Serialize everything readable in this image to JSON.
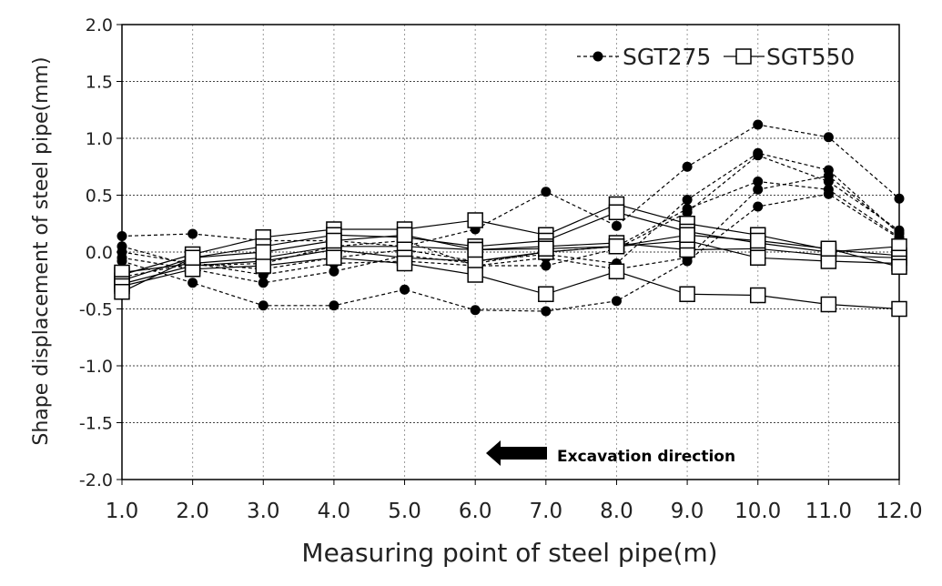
{
  "chart_data": {
    "type": "line",
    "xlabel": "Measuring point of steel pipe(m)",
    "ylabel": "Shape displacement of steel pipe(mm)",
    "xlim": [
      1,
      12
    ],
    "ylim": [
      -2.0,
      2.0
    ],
    "x_ticks": [
      "1.0",
      "2.0",
      "3.0",
      "4.0",
      "5.0",
      "6.0",
      "7.0",
      "8.0",
      "9.0",
      "10.0",
      "11.0",
      "12.0"
    ],
    "y_ticks": [
      "-2.0",
      "-1.5",
      "-1.0",
      "-0.5",
      "0.0",
      "0.5",
      "1.0",
      "1.5",
      "2.0"
    ],
    "grid": true,
    "legend": {
      "position": "top-right",
      "entries": [
        "SGT275",
        "SGT550"
      ]
    },
    "annotation": {
      "text": "Excavation direction",
      "arrow": "left",
      "x": 6.0,
      "y": -1.78
    },
    "x": [
      1,
      2,
      3,
      4,
      5,
      6,
      7,
      8,
      9,
      10,
      11,
      12
    ],
    "series": [
      {
        "name": "SGT275",
        "group": "SGT275",
        "style": "dashed-filled-circle",
        "values": [
          0.14,
          0.16,
          0.1,
          0.1,
          0.05,
          0.2,
          0.53,
          0.23,
          0.75,
          1.12,
          1.01,
          0.47
        ]
      },
      {
        "name": "SGT275",
        "group": "SGT275",
        "style": "dashed-filled-circle",
        "values": [
          0.05,
          -0.12,
          -0.1,
          0.05,
          0.1,
          -0.12,
          -0.12,
          0.03,
          0.35,
          0.85,
          0.62,
          0.19
        ]
      },
      {
        "name": "SGT275",
        "group": "SGT275",
        "style": "dashed-filled-circle",
        "values": [
          0.0,
          -0.1,
          -0.15,
          -0.05,
          0.02,
          -0.08,
          -0.02,
          -0.1,
          0.46,
          0.87,
          0.72,
          0.16
        ]
      },
      {
        "name": "SGT275",
        "group": "SGT275",
        "style": "dashed-filled-circle",
        "values": [
          -0.05,
          -0.15,
          -0.27,
          -0.17,
          -0.03,
          -0.1,
          0.0,
          0.05,
          0.38,
          0.62,
          0.55,
          0.13
        ]
      },
      {
        "name": "SGT275",
        "group": "SGT275",
        "style": "dashed-filled-circle",
        "values": [
          -0.08,
          -0.27,
          -0.47,
          -0.47,
          -0.33,
          -0.51,
          -0.52,
          -0.43,
          -0.08,
          0.4,
          0.51,
          0.12
        ]
      },
      {
        "name": "SGT275",
        "group": "SGT275",
        "style": "dashed-filled-circle",
        "values": [
          -0.22,
          -0.1,
          -0.2,
          -0.1,
          -0.08,
          -0.12,
          -0.05,
          -0.15,
          -0.05,
          0.55,
          0.67,
          0.17
        ]
      },
      {
        "name": "SGT550",
        "group": "SGT550",
        "style": "solid-open-square",
        "values": [
          -0.2,
          -0.02,
          0.13,
          0.2,
          0.2,
          0.28,
          0.15,
          0.42,
          0.25,
          0.15,
          0.02,
          -0.03
        ]
      },
      {
        "name": "SGT550",
        "group": "SGT550",
        "style": "solid-open-square",
        "values": [
          -0.25,
          -0.05,
          0.05,
          0.15,
          0.13,
          0.05,
          0.1,
          0.35,
          0.18,
          0.08,
          0.0,
          0.05
        ]
      },
      {
        "name": "SGT550",
        "group": "SGT550",
        "style": "solid-open-square",
        "values": [
          -0.18,
          -0.1,
          -0.05,
          0.05,
          0.05,
          0.02,
          0.05,
          0.08,
          0.02,
          0.03,
          -0.03,
          -0.05
        ]
      },
      {
        "name": "SGT550",
        "group": "SGT550",
        "style": "solid-open-square",
        "values": [
          -0.28,
          -0.12,
          -0.08,
          0.02,
          -0.05,
          -0.08,
          0.0,
          0.05,
          0.1,
          -0.05,
          -0.08,
          -0.1
        ]
      },
      {
        "name": "SGT550",
        "group": "SGT550",
        "style": "solid-open-square",
        "values": [
          -0.3,
          -0.15,
          -0.12,
          -0.05,
          -0.1,
          -0.2,
          -0.37,
          -0.17,
          -0.37,
          -0.38,
          -0.46,
          -0.5
        ]
      },
      {
        "name": "SGT550",
        "group": "SGT550",
        "style": "solid-open-square",
        "values": [
          -0.35,
          -0.05,
          0.0,
          0.1,
          0.15,
          0.02,
          0.03,
          0.05,
          0.15,
          0.1,
          0.03,
          -0.13
        ]
      }
    ]
  }
}
